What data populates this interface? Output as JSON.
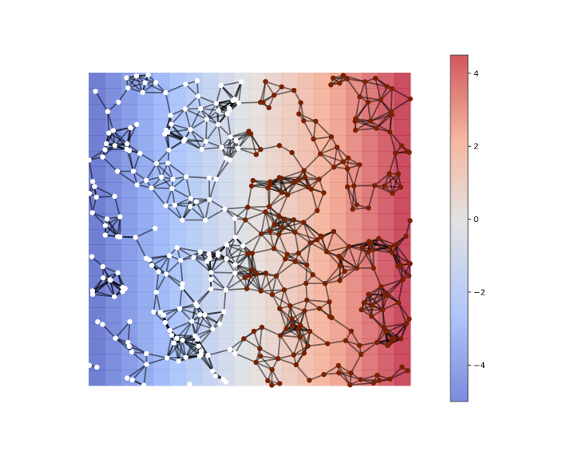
{
  "chart_data": {
    "type": "scatter",
    "description_kind": "random geometric graph over a horizontal color gradient field",
    "x_range": [
      0,
      1
    ],
    "y_range": [
      0,
      1
    ],
    "axes_visible": false,
    "grid": false,
    "background_field": {
      "colormap": "coolwarm",
      "orientation": "horizontal",
      "columns": 20,
      "rows": 20,
      "min": -5,
      "max": 4.5
    },
    "nodes": {
      "count": 400,
      "color_negative": "#ffffff",
      "color_positive": "#7a2100",
      "threshold_x": 0.48,
      "edge_radius": 0.075,
      "edge_color": "#000000"
    },
    "colorbar": {
      "ticks": [
        4,
        2,
        0,
        -2,
        -4
      ],
      "tick_labels": [
        "4",
        "2",
        "0",
        "−2",
        "−4"
      ],
      "min": -5,
      "max": 4.5
    }
  }
}
